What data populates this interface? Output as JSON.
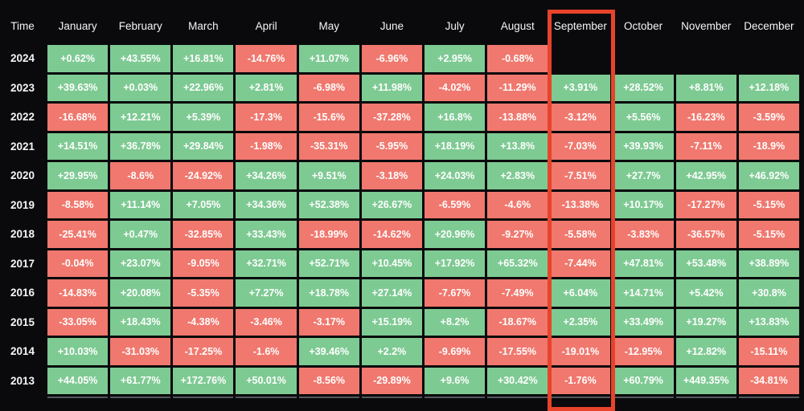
{
  "colors": {
    "positive": "#7ECA93",
    "negative": "#F0786E",
    "highlight_border": "#E8432B",
    "background": "#0A0A0C",
    "text": "#FFFFFF",
    "partial_row_line": "#54585E"
  },
  "highlight": {
    "column": "September"
  },
  "chart_data": {
    "type": "heatmap",
    "corner_label": "Time",
    "columns": [
      "January",
      "February",
      "March",
      "April",
      "May",
      "June",
      "July",
      "August",
      "September",
      "October",
      "November",
      "December"
    ],
    "highlighted_column": "September",
    "cell_color_rule": "green for positive values, red for negative values, empty cells unfilled",
    "rows": [
      {
        "year": "2024",
        "values": [
          "+0.62%",
          "+43.55%",
          "+16.81%",
          "-14.76%",
          "+11.07%",
          "-6.96%",
          "+2.95%",
          "-0.68%",
          "",
          "",
          "",
          ""
        ]
      },
      {
        "year": "2023",
        "values": [
          "+39.63%",
          "+0.03%",
          "+22.96%",
          "+2.81%",
          "-6.98%",
          "+11.98%",
          "-4.02%",
          "-11.29%",
          "+3.91%",
          "+28.52%",
          "+8.81%",
          "+12.18%"
        ]
      },
      {
        "year": "2022",
        "values": [
          "-16.68%",
          "+12.21%",
          "+5.39%",
          "-17.3%",
          "-15.6%",
          "-37.28%",
          "+16.8%",
          "-13.88%",
          "-3.12%",
          "+5.56%",
          "-16.23%",
          "-3.59%"
        ]
      },
      {
        "year": "2021",
        "values": [
          "+14.51%",
          "+36.78%",
          "+29.84%",
          "-1.98%",
          "-35.31%",
          "-5.95%",
          "+18.19%",
          "+13.8%",
          "-7.03%",
          "+39.93%",
          "-7.11%",
          "-18.9%"
        ]
      },
      {
        "year": "2020",
        "values": [
          "+29.95%",
          "-8.6%",
          "-24.92%",
          "+34.26%",
          "+9.51%",
          "-3.18%",
          "+24.03%",
          "+2.83%",
          "-7.51%",
          "+27.7%",
          "+42.95%",
          "+46.92%"
        ]
      },
      {
        "year": "2019",
        "values": [
          "-8.58%",
          "+11.14%",
          "+7.05%",
          "+34.36%",
          "+52.38%",
          "+26.67%",
          "-6.59%",
          "-4.6%",
          "-13.38%",
          "+10.17%",
          "-17.27%",
          "-5.15%"
        ]
      },
      {
        "year": "2018",
        "values": [
          "-25.41%",
          "+0.47%",
          "-32.85%",
          "+33.43%",
          "-18.99%",
          "-14.62%",
          "+20.96%",
          "-9.27%",
          "-5.58%",
          "-3.83%",
          "-36.57%",
          "-5.15%"
        ]
      },
      {
        "year": "2017",
        "values": [
          "-0.04%",
          "+23.07%",
          "-9.05%",
          "+32.71%",
          "+52.71%",
          "+10.45%",
          "+17.92%",
          "+65.32%",
          "-7.44%",
          "+47.81%",
          "+53.48%",
          "+38.89%"
        ]
      },
      {
        "year": "2016",
        "values": [
          "-14.83%",
          "+20.08%",
          "-5.35%",
          "+7.27%",
          "+18.78%",
          "+27.14%",
          "-7.67%",
          "-7.49%",
          "+6.04%",
          "+14.71%",
          "+5.42%",
          "+30.8%"
        ]
      },
      {
        "year": "2015",
        "values": [
          "-33.05%",
          "+18.43%",
          "-4.38%",
          "-3.46%",
          "-3.17%",
          "+15.19%",
          "+8.2%",
          "-18.67%",
          "+2.35%",
          "+33.49%",
          "+19.27%",
          "+13.83%"
        ]
      },
      {
        "year": "2014",
        "values": [
          "+10.03%",
          "-31.03%",
          "-17.25%",
          "-1.6%",
          "+39.46%",
          "+2.2%",
          "-9.69%",
          "-17.55%",
          "-19.01%",
          "-12.95%",
          "+12.82%",
          "-15.11%"
        ]
      },
      {
        "year": "2013",
        "values": [
          "+44.05%",
          "+61.77%",
          "+172.76%",
          "+50.01%",
          "-8.56%",
          "-29.89%",
          "+9.6%",
          "+30.42%",
          "-1.76%",
          "+60.79%",
          "+449.35%",
          "-34.81%"
        ]
      }
    ]
  }
}
